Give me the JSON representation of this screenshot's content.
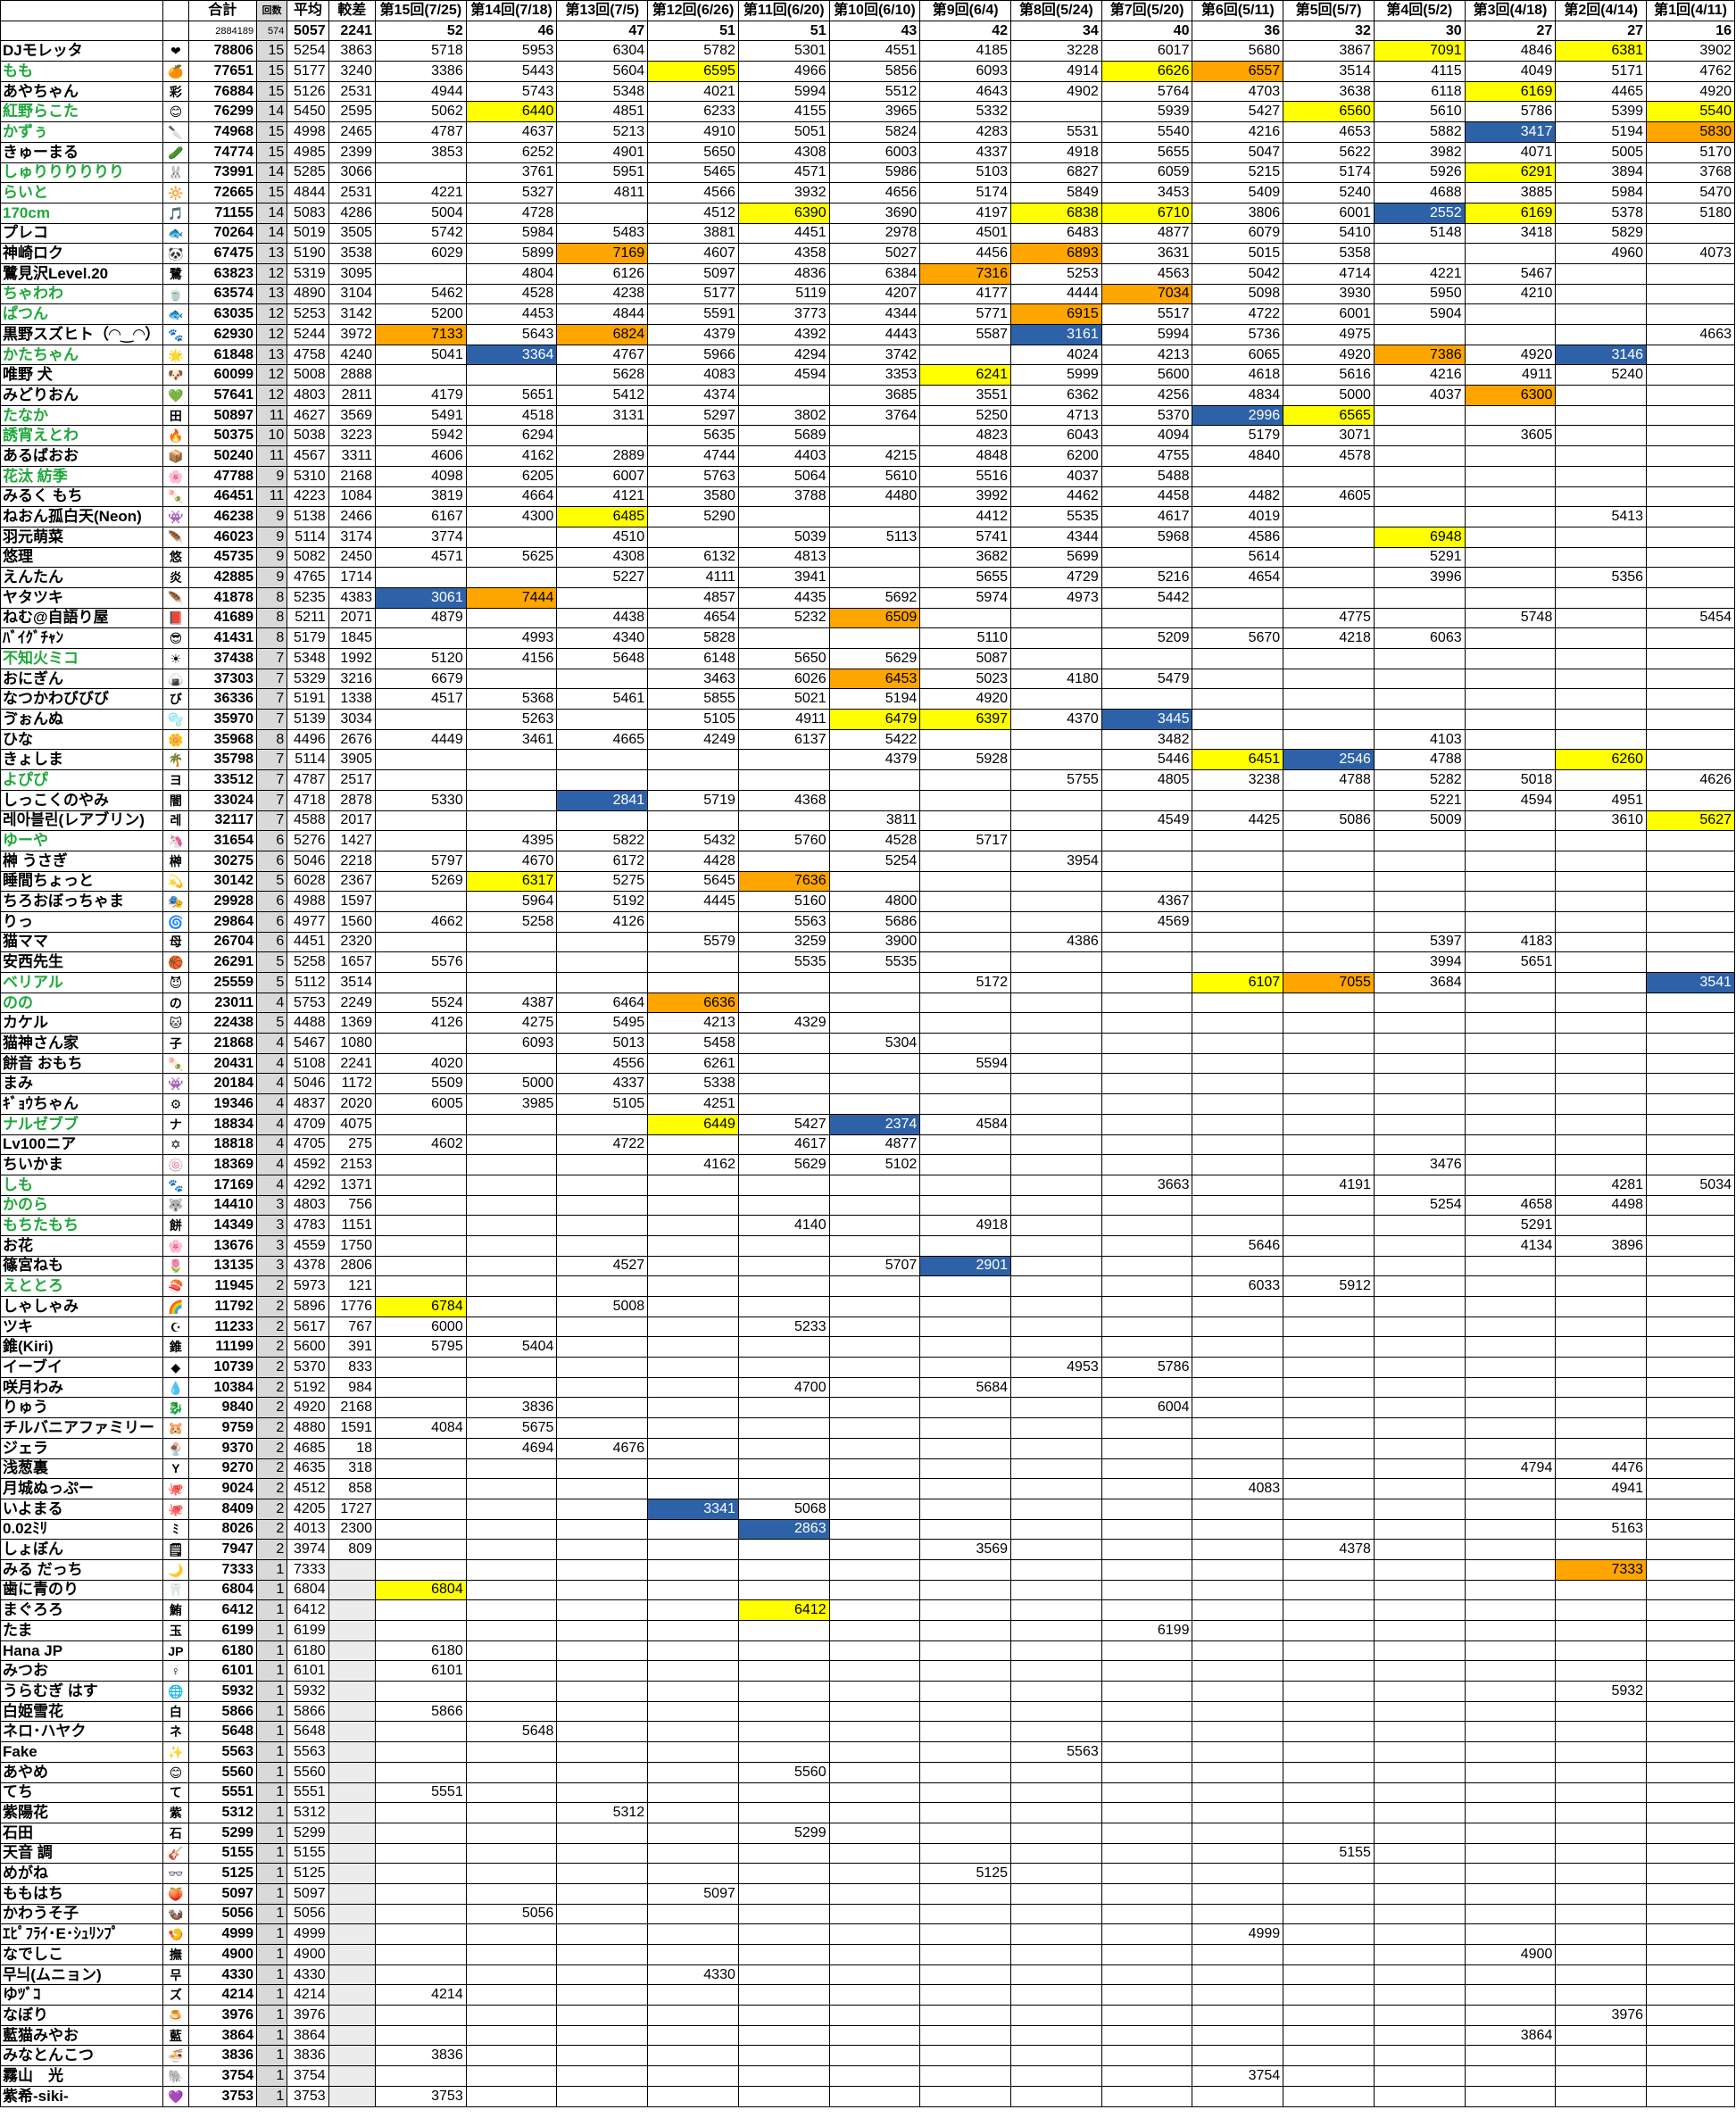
{
  "header": {
    "total_label": "合計",
    "count_label": "回数",
    "avg_label": "平均",
    "diff_label": "較差",
    "grand_total": "2884189",
    "grand_count": "574",
    "avg_top": "5057",
    "diff_top": "2241",
    "rounds": [
      {
        "label": "第15回(7/25)",
        "n": "52"
      },
      {
        "label": "第14回(7/18)",
        "n": "46"
      },
      {
        "label": "第13回(7/5)",
        "n": "47"
      },
      {
        "label": "第12回(6/26)",
        "n": "51"
      },
      {
        "label": "第11回(6/20)",
        "n": "51"
      },
      {
        "label": "第10回(6/10)",
        "n": "43"
      },
      {
        "label": "第9回(6/4)",
        "n": "42"
      },
      {
        "label": "第8回(5/24)",
        "n": "34"
      },
      {
        "label": "第7回(5/20)",
        "n": "40"
      },
      {
        "label": "第6回(5/11)",
        "n": "36"
      },
      {
        "label": "第5回(5/7)",
        "n": "32"
      },
      {
        "label": "第4回(5/2)",
        "n": "30"
      },
      {
        "label": "第3回(4/18)",
        "n": "27"
      },
      {
        "label": "第2回(4/14)",
        "n": "27"
      },
      {
        "label": "第1回(4/11)",
        "n": "16"
      }
    ]
  },
  "rows": [
    [
      "DJモレッタ",
      "❤",
      "",
      "78806",
      "15",
      "5254",
      "3863",
      [
        "5718",
        "5953",
        "6304",
        "5782",
        "5301",
        "4551",
        "4185",
        "3228",
        "6017",
        "5680",
        "3867",
        "7091y",
        "4846",
        "6381y",
        "3902"
      ]
    ],
    [
      "もも",
      "🍊",
      "g",
      "77651",
      "15",
      "5177",
      "3240",
      [
        "3386",
        "5443",
        "5604",
        "6595y",
        "4966",
        "5856",
        "6093",
        "4914",
        "6626y",
        "6557o",
        "3514",
        "4115",
        "4049",
        "5171",
        "4762"
      ]
    ],
    [
      "あやちゃん",
      "彩",
      "",
      "76884",
      "15",
      "5126",
      "2531",
      "4944 5743 5348 4021 5994 5512 4643 4902 5764 4703 3638 6118 6169y 4465 4920"
    ],
    [
      "紅野らこた",
      "😊",
      "g",
      "76299",
      "14",
      "5450",
      "2595",
      "5062 6440y 4851 6233 4155 3965 5332 - 5939 5427 6560y 5610 5786 5399 5540y"
    ],
    [
      "かずぅ",
      "🔪",
      "g",
      "74968",
      "15",
      "4998",
      "2465",
      "4787 4637 5213 4910 5051 5824 4283 5531 5540 4216 4653 5882 3417b 5194 5830o"
    ],
    [
      "きゅーまる",
      "🥒",
      "",
      "74774",
      "15",
      "4985",
      "2399",
      "3853 6252 4901 5650 4308 6003 4337 4918 5655 5047 5622 3982 4071 5005 5170"
    ],
    [
      "しゅりりりりりり",
      "🐰",
      "g",
      "73991",
      "14",
      "5285",
      "3066",
      "- 3761 5951 5465 4571 5986 5103 6827 6059 5215 5174 5926 6291y 3894 3768"
    ],
    [
      "らいと",
      "🔆",
      "g",
      "72665",
      "15",
      "4844",
      "2531",
      "4221 5327 4811 4566 3932 4656 5174 5849 3453 5409 5240 4688 3885 5984 5470"
    ],
    [
      "170cm",
      "🎵",
      "g",
      "71155",
      "14",
      "5083",
      "4286",
      "5004 4728 - 4512 6390y 3690 4197 6838y 6710y 3806 6001 2552b 6169y 5378 5180"
    ],
    [
      "プレコ",
      "🐟",
      "",
      "70264",
      "14",
      "5019",
      "3505",
      "5742 5984 5483 3881 4451 2978 4501 6483 4877 6079 5410 5148 3418 5829 -"
    ],
    [
      "神崎ロク",
      "🐼",
      "",
      "67475",
      "13",
      "5190",
      "3538",
      "6029 5899 7169o 4607 4358 5027 4456 6893o 3631 5015 5358 - - 4960 4073"
    ],
    [
      "鷺見沢Level.20",
      "鷺",
      "",
      "63823",
      "12",
      "5319",
      "3095",
      "- 4804 6126 5097 4836 6384 7316o 5253 4563 5042 4714 4221 5467 - -"
    ],
    [
      "ちゃわわ",
      "🍵",
      "g",
      "63574",
      "13",
      "4890",
      "3104",
      "5462 4528 4238 5177 5119 4207 4177 4444 7034o 5098 3930 5950 4210 - -"
    ],
    [
      "ぱつん",
      "🐟",
      "g",
      "63035",
      "12",
      "5253",
      "3142",
      "5200 4453 4844 5591 3773 4344 5771 6915o 5517 4722 6001 5904 - - -"
    ],
    [
      "黒野スズヒト（◠‿◠）",
      "🐾",
      "",
      "62930",
      "12",
      "5244",
      "3972",
      "7133o 5643 6824o 4379 4392 4443 5587 3161b 5994 5736 4975 - - - 4663"
    ],
    [
      "かたちゃん",
      "🌟",
      "g",
      "61848",
      "13",
      "4758",
      "4240",
      "5041 3364b 4767 5966 4294 3742 - 4024 4213 6065 4920 7386o 4920 3146b -"
    ],
    [
      "唯野 犬",
      "🐶",
      "",
      "60099",
      "12",
      "5008",
      "2888",
      "- - 5628 4083 4594 3353 6241y 5999 5600 4618 5616 4216 4911 5240 -"
    ],
    [
      "みどりおん",
      "💚",
      "",
      "57641",
      "12",
      "4803",
      "2811",
      "4179 5651 5412 4374 - 3685 3551 6362 4256 4834 5000 4037 6300o - -"
    ],
    [
      "たなか",
      "田",
      "g",
      "50897",
      "11",
      "4627",
      "3569",
      "5491 4518 3131 5297 3802 3764 5250 4713 5370 2996b 6565y - - - -"
    ],
    [
      "誘宵えとわ",
      "🔥",
      "g",
      "50375",
      "10",
      "5038",
      "3223",
      "5942 6294 - 5635 5689 - 4823 6043 4094 5179 3071 - 3605 - -"
    ],
    [
      "あるばおお",
      "📦",
      "",
      "50240",
      "11",
      "4567",
      "3311",
      "4606 4162 2889 4744 4403 4215 4848 6200 4755 4840 4578 - - - -"
    ],
    [
      "花汰 紡季",
      "🌸",
      "g",
      "47788",
      "9",
      "5310",
      "2168",
      "4098 6205 6007 5763 5064 5610 5516 4037 5488 - - - - - -"
    ],
    [
      "みるく もち",
      "🍡",
      "",
      "46451",
      "11",
      "4223",
      "1084",
      "3819 4664 4121 3580 3788 4480 3992 4462 4458 4482 4605 - - - -"
    ],
    [
      "ねおん孤白天(Neon)",
      "👾",
      "",
      "46238",
      "9",
      "5138",
      "2466",
      "6167 4300 6485y 5290 - - 4412 5535 4617 4019 - - - 5413 -"
    ],
    [
      "羽元萌菜",
      "🪶",
      "",
      "46023",
      "9",
      "5114",
      "3174",
      "3774 - 4510 - 5039 5113 5741 4344 5968 4586 - 6948y - - -"
    ],
    [
      "悠理",
      "悠",
      "",
      "45735",
      "9",
      "5082",
      "2450",
      "4571 5625 4308 6132 4813 - 3682 5699 - 5614 - 5291 - - -"
    ],
    [
      "えんたん",
      "炎",
      "",
      "42885",
      "9",
      "4765",
      "1714",
      "- - 5227 4111 3941 - 5655 4729 5216 4654 - 3996 - 5356 -"
    ],
    [
      "ヤタツキ",
      "🪶",
      "",
      "41878",
      "8",
      "5235",
      "4383",
      "3061b 7444o - 4857 4435 5692 5974 4973 5442 - - - - - -"
    ],
    [
      "ねむ@自語り屋",
      "📕",
      "",
      "41689",
      "8",
      "5211",
      "2071",
      "4879 - 4438 4654 5232 6509o - - - - 4775 - 5748 - 5454"
    ],
    [
      "ﾊﾞｲｸﾞﾁｬﾝ",
      "😎",
      "",
      "41431",
      "8",
      "5179",
      "1845",
      "- 4993 4340 5828 - - 5110 - 5209 5670 4218 6063 - - -"
    ],
    [
      "不知火ミコ",
      "☀",
      "g",
      "37438",
      "7",
      "5348",
      "1992",
      "5120 4156 5648 6148 5650 5629 5087 - - - - - - - -"
    ],
    [
      "おにぎん",
      "🍙",
      "",
      "37303",
      "7",
      "5329",
      "3216",
      "6679 - - 3463 6026 6453o 5023 4180 5479 - - - - - -"
    ],
    [
      "なつかわびびび",
      "び",
      "",
      "36336",
      "7",
      "5191",
      "1338",
      "4517 5368 5461 5855 5021 5194 4920 - - - - - - - -"
    ],
    [
      "ゔぉんぬ",
      "🫧",
      "",
      "35970",
      "7",
      "5139",
      "3034",
      "- 5263 - 5105 4911 6479y 6397y 4370 3445b - - - - - -"
    ],
    [
      "ひな",
      "🌼",
      "",
      "35968",
      "8",
      "4496",
      "2676",
      "4449 3461 4665 4249 6137 5422 - - 3482 - - 4103 - - -"
    ],
    [
      "きょしま",
      "🌴",
      "",
      "35798",
      "7",
      "5114",
      "3905",
      "- - - - - 4379 5928 - 5446 6451y 2546b 4788 - 6260y -"
    ],
    [
      "よぴぴ",
      "ヨ",
      "g",
      "33512",
      "7",
      "4787",
      "2517",
      "- - - - - - - 5755 4805 3238 4788 5282 5018 - 4626"
    ],
    [
      "しっこくのやみ",
      "闇",
      "",
      "33024",
      "7",
      "4718",
      "2878",
      "5330 - 2841b 5719 4368 - - - - - - 5221 4594 4951 -"
    ],
    [
      "레아블린(レアブリン)",
      "레",
      "",
      "32117",
      "7",
      "4588",
      "2017",
      "- - - - - 3811 - - 4549 4425 5086 5009 - 3610 5627y"
    ],
    [
      "ゆーや",
      "🦄",
      "g",
      "31654",
      "6",
      "5276",
      "1427",
      "- 4395 5822 5432 5760 4528 5717 - - - - - - - -"
    ],
    [
      "榊 うさぎ",
      "榊",
      "",
      "30275",
      "6",
      "5046",
      "2218",
      "5797 4670 6172 4428 - 5254 - 3954 - - - - - - -"
    ],
    [
      "睡間ちょっと",
      "💫",
      "",
      "30142",
      "5",
      "6028",
      "2367",
      "5269 6317y 5275 5645 7636o - - - - - - - - - -"
    ],
    [
      "ちろおぼっちゃま",
      "🎭",
      "",
      "29928",
      "6",
      "4988",
      "1597",
      "- 5964 5192 4445 5160 4800 - - 4367 - - - - - -"
    ],
    [
      "りっ",
      "🌀",
      "",
      "29864",
      "6",
      "4977",
      "1560",
      "4662 5258 4126 - 5563 5686 - - 4569 - - - - - -"
    ],
    [
      "猫ママ",
      "母",
      "",
      "26704",
      "6",
      "4451",
      "2320",
      "- - - 5579 3259 3900 - 4386 - - - 5397 4183 - -"
    ],
    [
      "安西先生",
      "🏀",
      "",
      "26291",
      "5",
      "5258",
      "1657",
      "5576 - - - 5535 5535 - - - - - 3994 5651 - -"
    ],
    [
      "ベリアル",
      "😈",
      "g",
      "25559",
      "5",
      "5112",
      "3514",
      "- - - - - - 5172 - - 6107y 7055o 3684 - - 3541b"
    ],
    [
      "のの",
      "の",
      "g",
      "23011",
      "4",
      "5753",
      "2249",
      "5524 4387 6464 6636o - - - - - - - - - - -"
    ],
    [
      "カケル",
      "🐱",
      "",
      "22438",
      "5",
      "4488",
      "1369",
      "4126 4275 5495 4213 4329 - - - - - - - - - -"
    ],
    [
      "猫神さん家",
      "子",
      "",
      "21868",
      "4",
      "5467",
      "1080",
      "- 6093 5013 5458 - 5304 - - - - - - - - -"
    ],
    [
      "餅音 おもち",
      "🍡",
      "",
      "20431",
      "4",
      "5108",
      "2241",
      "4020 - 4556 6261 - - 5594 - - - - - - - -"
    ],
    [
      "まみ",
      "👾",
      "",
      "20184",
      "4",
      "5046",
      "1172",
      "5509 5000 4337 5338 - - - - - - - - - - -"
    ],
    [
      "ｷﾞｮｳちゃん",
      "⚙",
      "",
      "19346",
      "4",
      "4837",
      "2020",
      "6005 3985 5105 4251 - - - - - - - - - - -"
    ],
    [
      "ナルゼブブ",
      "ナ",
      "g",
      "18834",
      "4",
      "4709",
      "4075",
      "- - - 6449y 5427 2374b 4584 - - - - - - - -"
    ],
    [
      "Lv100ニア",
      "✡",
      "",
      "18818",
      "4",
      "4705",
      "275",
      "4602 - 4722 - 4617 4877 - - - - - - - - -"
    ],
    [
      "ちいかま",
      "🍥",
      "",
      "18369",
      "4",
      "4592",
      "2153",
      "- - - 4162 5629 5102 - - - - - 3476 - - -"
    ],
    [
      "しも",
      "🐾",
      "g",
      "17169",
      "4",
      "4292",
      "1371",
      "- - - - - - - - 3663 - 4191 - - 4281 5034"
    ],
    [
      "かのら",
      "🐺",
      "g",
      "14410",
      "3",
      "4803",
      "756",
      "- - - - - - - - - - - 5254 4658 4498 -"
    ],
    [
      "もちたもち",
      "餅",
      "g",
      "14349",
      "3",
      "4783",
      "1151",
      "- - - - 4140 - 4918 - - - - - 5291 - -"
    ],
    [
      "お花",
      "🌸",
      "",
      "13676",
      "3",
      "4559",
      "1750",
      "- - - - - - - - - 5646 - - 4134 3896 -"
    ],
    [
      "篠宮ねも",
      "🌷",
      "",
      "13135",
      "3",
      "4378",
      "2806",
      "- - 4527 - - 5707 2901b - - - - - - - -"
    ],
    [
      "えととろ",
      "🍣",
      "g",
      "11945",
      "2",
      "5973",
      "121",
      "- - - - - - - - - 6033 5912 - - - -"
    ],
    [
      "しゃしゃみ",
      "🌈",
      "",
      "11792",
      "2",
      "5896",
      "1776",
      "6784y - 5008 - - - - - - - - - - - -"
    ],
    [
      "ツキ",
      "☪",
      "",
      "11233",
      "2",
      "5617",
      "767",
      "6000 - - - 5233 - - - - - - - - - -"
    ],
    [
      "錐(Kiri)",
      "錐",
      "",
      "11199",
      "2",
      "5600",
      "391",
      "5795 5404 - - - - - - - - - - - - -"
    ],
    [
      "イーブイ",
      "◆",
      "",
      "10739",
      "2",
      "5370",
      "833",
      "- - - - - - - 4953 5786 - - - - - -"
    ],
    [
      "咲月わみ",
      "💧",
      "",
      "10384",
      "2",
      "5192",
      "984",
      "- - - - 4700 - 5684 - - - - - - - -"
    ],
    [
      "りゅう",
      "🐉",
      "",
      "9840",
      "2",
      "4920",
      "2168",
      "- 3836 - - - - - - 6004 - - - - - -"
    ],
    [
      "チルバニアファミリー",
      "🐹",
      "",
      "9759",
      "2",
      "4880",
      "1591",
      "4084 5675 - - - - - - - - - - - - -"
    ],
    [
      "ジェラ",
      "🍨",
      "",
      "9370",
      "2",
      "4685",
      "18",
      "- 4694 4676 - - - - - - - - - - - -"
    ],
    [
      "浅葱裏",
      "Y",
      "",
      "9270",
      "2",
      "4635",
      "318",
      "- - - - - - - - - - - - 4794 4476 -"
    ],
    [
      "月城ぬっぷー",
      "🐙",
      "",
      "9024",
      "2",
      "4512",
      "858",
      "- - - - - - - - - 4083 - - - 4941 -"
    ],
    [
      "いよまる",
      "🐙",
      "",
      "8409",
      "2",
      "4205",
      "1727",
      "- - - 3341b 5068 - - - - - - - - - -"
    ],
    [
      "0.02ﾐﾘ",
      "ﾐ",
      "",
      "8026",
      "2",
      "4013",
      "2300",
      "- - - - 2863b - - - - - - - - 5163 -"
    ],
    [
      "しょぼん",
      "🗒",
      "",
      "7947",
      "2",
      "3974",
      "809",
      "- - - - - - 3569 - - - 4378 - - - -"
    ],
    [
      "みる だっち",
      "🌙",
      "",
      "7333",
      "1",
      "7333",
      "",
      "- - - - - - - - - - - - - 7333o -"
    ],
    [
      "歯に青のり",
      "🦷",
      "",
      "6804",
      "1",
      "6804",
      "",
      "6804y - - - - - - - - - - - - - -"
    ],
    [
      "まぐろろ",
      "鮪",
      "",
      "6412",
      "1",
      "6412",
      "",
      "- - - - 6412y - - - - - - - - - -"
    ],
    [
      "たま",
      "玉",
      "",
      "6199",
      "1",
      "6199",
      "",
      "- - - - - - - - 6199 - - - - - -"
    ],
    [
      "Hana JP",
      "JP",
      "",
      "6180",
      "1",
      "6180",
      "",
      "6180 - - - - - - - - - - - - - -"
    ],
    [
      "みつお",
      "♀",
      "",
      "6101",
      "1",
      "6101",
      "",
      "6101 - - - - - - - - - - - - - -"
    ],
    [
      "うらむぎ はす",
      "🌐",
      "",
      "5932",
      "1",
      "5932",
      "",
      "- - - - - - - - - - - - - 5932 -"
    ],
    [
      "白姫雪花",
      "白",
      "",
      "5866",
      "1",
      "5866",
      "",
      "5866 - - - - - - - - - - - - - -"
    ],
    [
      "ネロ･ハヤク",
      "ネ",
      "",
      "5648",
      "1",
      "5648",
      "",
      "- 5648 - - - - - - - - - - - - -"
    ],
    [
      "Fake",
      "✨",
      "",
      "5563",
      "1",
      "5563",
      "",
      "- - - - - - - 5563 - - - - - - -"
    ],
    [
      "あやめ",
      "😊",
      "",
      "5560",
      "1",
      "5560",
      "",
      "- - - - 5560 - - - - - - - - - -"
    ],
    [
      "てち",
      "て",
      "",
      "5551",
      "1",
      "5551",
      "",
      "5551 - - - - - - - - - - - - - -"
    ],
    [
      "紫陽花",
      "紫",
      "",
      "5312",
      "1",
      "5312",
      "",
      "- - 5312 - - - - - - - - - - - -"
    ],
    [
      "石田",
      "石",
      "",
      "5299",
      "1",
      "5299",
      "",
      "- - - - 5299 - - - - - - - - - -"
    ],
    [
      "天音 調",
      "🎸",
      "",
      "5155",
      "1",
      "5155",
      "",
      "- - - - - - - - - - 5155 - - - -"
    ],
    [
      "めがね",
      "👓",
      "",
      "5125",
      "1",
      "5125",
      "",
      "- - - - - - 5125 - - - - - - - -"
    ],
    [
      "ももはち",
      "🍑",
      "",
      "5097",
      "1",
      "5097",
      "",
      "- - - 5097 - - - - - - - - - - -"
    ],
    [
      "かわうそ子",
      "🦦",
      "",
      "5056",
      "1",
      "5056",
      "",
      "- 5056 - - - - - - - - - - - - -"
    ],
    [
      "ｴﾋﾟﾌﾗｲ･E･ｼｭﾘﾝﾌﾟ",
      "🍤",
      "",
      "4999",
      "1",
      "4999",
      "",
      "- - - - - - - - - 4999 - - - - -"
    ],
    [
      "なでしこ",
      "撫",
      "",
      "4900",
      "1",
      "4900",
      "",
      "- - - - - - - - - - - - 4900 - -"
    ],
    [
      "무늬(ムニョン)",
      "무",
      "",
      "4330",
      "1",
      "4330",
      "",
      "- - - 4330 - - - - - - - - - - -"
    ],
    [
      "ゆﾂﾞｺ",
      "ズ",
      "",
      "4214",
      "1",
      "4214",
      "",
      "4214 - - - - - - - - - - - - - -"
    ],
    [
      "なぼり",
      "🍮",
      "",
      "3976",
      "1",
      "3976",
      "",
      "- - - - - - - - - - - - - 3976 -"
    ],
    [
      "藍猫みやお",
      "藍",
      "",
      "3864",
      "1",
      "3864",
      "",
      "- - - - - - - - - - - - 3864 - -"
    ],
    [
      "みなとんこつ",
      "🍜",
      "",
      "3836",
      "1",
      "3836",
      "",
      "3836 - - - - - - - - - - - - - -"
    ],
    [
      "霧山　光",
      "🐘",
      "",
      "3754",
      "1",
      "3754",
      "",
      "- - - - - - - - - 3754 - - - - -"
    ],
    [
      "紫希-siki-",
      "💜",
      "",
      "3753",
      "1",
      "3753",
      "",
      "3753 - - - - - - - - - - - - - -"
    ]
  ]
}
